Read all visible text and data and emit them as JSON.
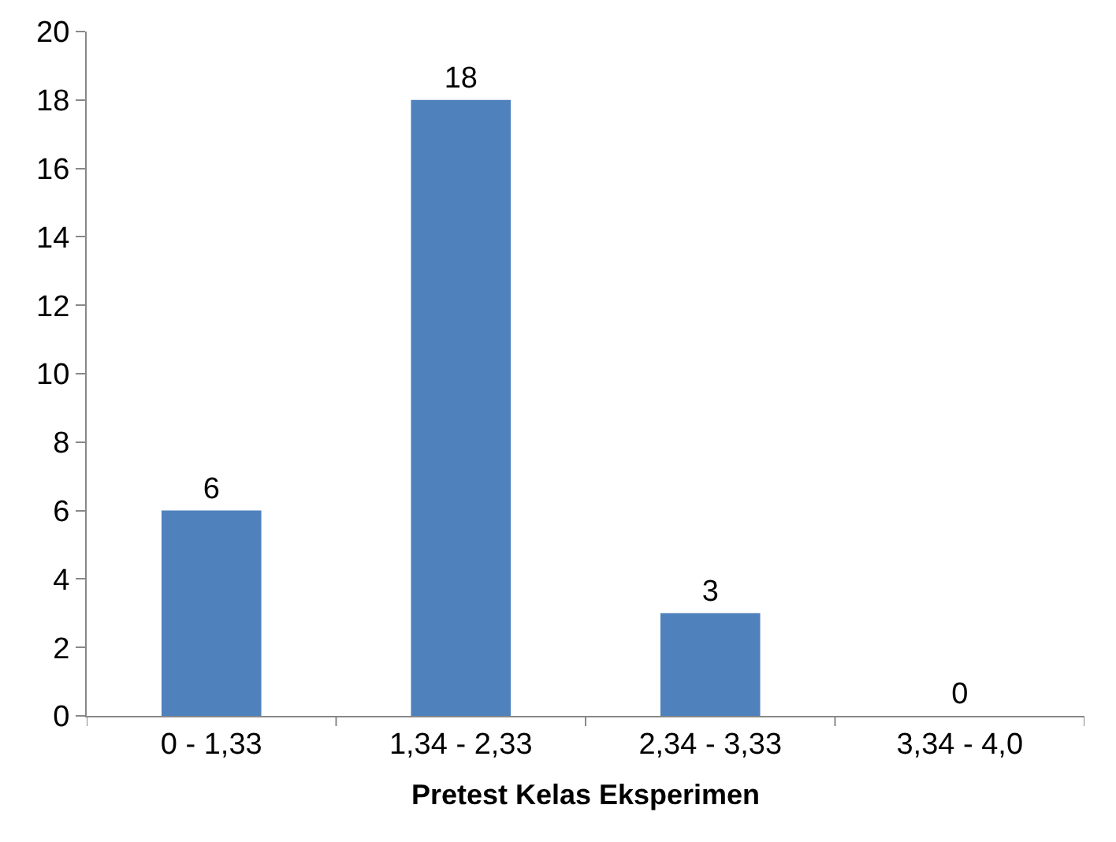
{
  "chart_data": {
    "type": "bar",
    "xlabel": "Pretest Kelas Eksperimen",
    "categories": [
      "0 - 1,33",
      "1,34 - 2,33",
      "2,34 - 3,33",
      "3,34 - 4,0"
    ],
    "values": [
      6,
      18,
      3,
      0
    ],
    "color": "#4f81bd",
    "data_labels": true,
    "ylim": [
      0,
      20
    ],
    "yticks": [
      0,
      2,
      4,
      6,
      8,
      10,
      12,
      14,
      16,
      18,
      20
    ],
    "legend": false
  }
}
